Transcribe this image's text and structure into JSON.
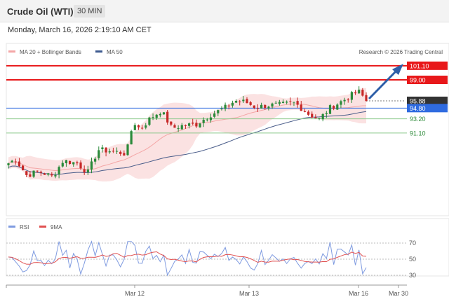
{
  "header": {
    "title": "Crude Oil (WTI)",
    "timeframe": "30 MIN"
  },
  "timestamp": "Monday, March 16, 2026 2:19:10 AM CET",
  "legend": {
    "bb": "MA 20 + Bollinger Bands",
    "ma50": "MA 50",
    "source": "Research © 2026 Trading Central"
  },
  "levels": [
    {
      "label": "101.10",
      "value": 101.1,
      "kind": "red",
      "boxed": true
    },
    {
      "label": "99.00",
      "value": 99.0,
      "kind": "red",
      "boxed": true
    },
    {
      "label": "95.88",
      "value": 95.88,
      "kind": "last",
      "boxed": true
    },
    {
      "label": "94.80",
      "value": 94.8,
      "kind": "blue",
      "boxed": true
    },
    {
      "label": "93.20",
      "value": 93.2,
      "kind": "green",
      "boxed": false
    },
    {
      "label": "91.10",
      "value": 91.1,
      "kind": "green",
      "boxed": false
    }
  ],
  "rsi": {
    "legend_rsi": "RSI",
    "legend_ma": "9MA",
    "ticks": [
      "70",
      "50",
      "30"
    ]
  },
  "xaxis": {
    "ticks": [
      "Mar 12",
      "Mar 13",
      "Mar 16",
      "Mar 30"
    ]
  },
  "colors": {
    "red": "#e8181a",
    "blue": "#2f6be0",
    "green": "#8dc98d",
    "last": "#333333",
    "bb_fill": "#f9d8d8",
    "ma20": "#f4a6a6",
    "ma50": "#4a5d8a",
    "up": "#2a8a3a",
    "down": "#c62828",
    "arrow": "#2e5fa8",
    "rsi_line": "#7f9be0",
    "rsi_ma": "#e05050"
  }
}
